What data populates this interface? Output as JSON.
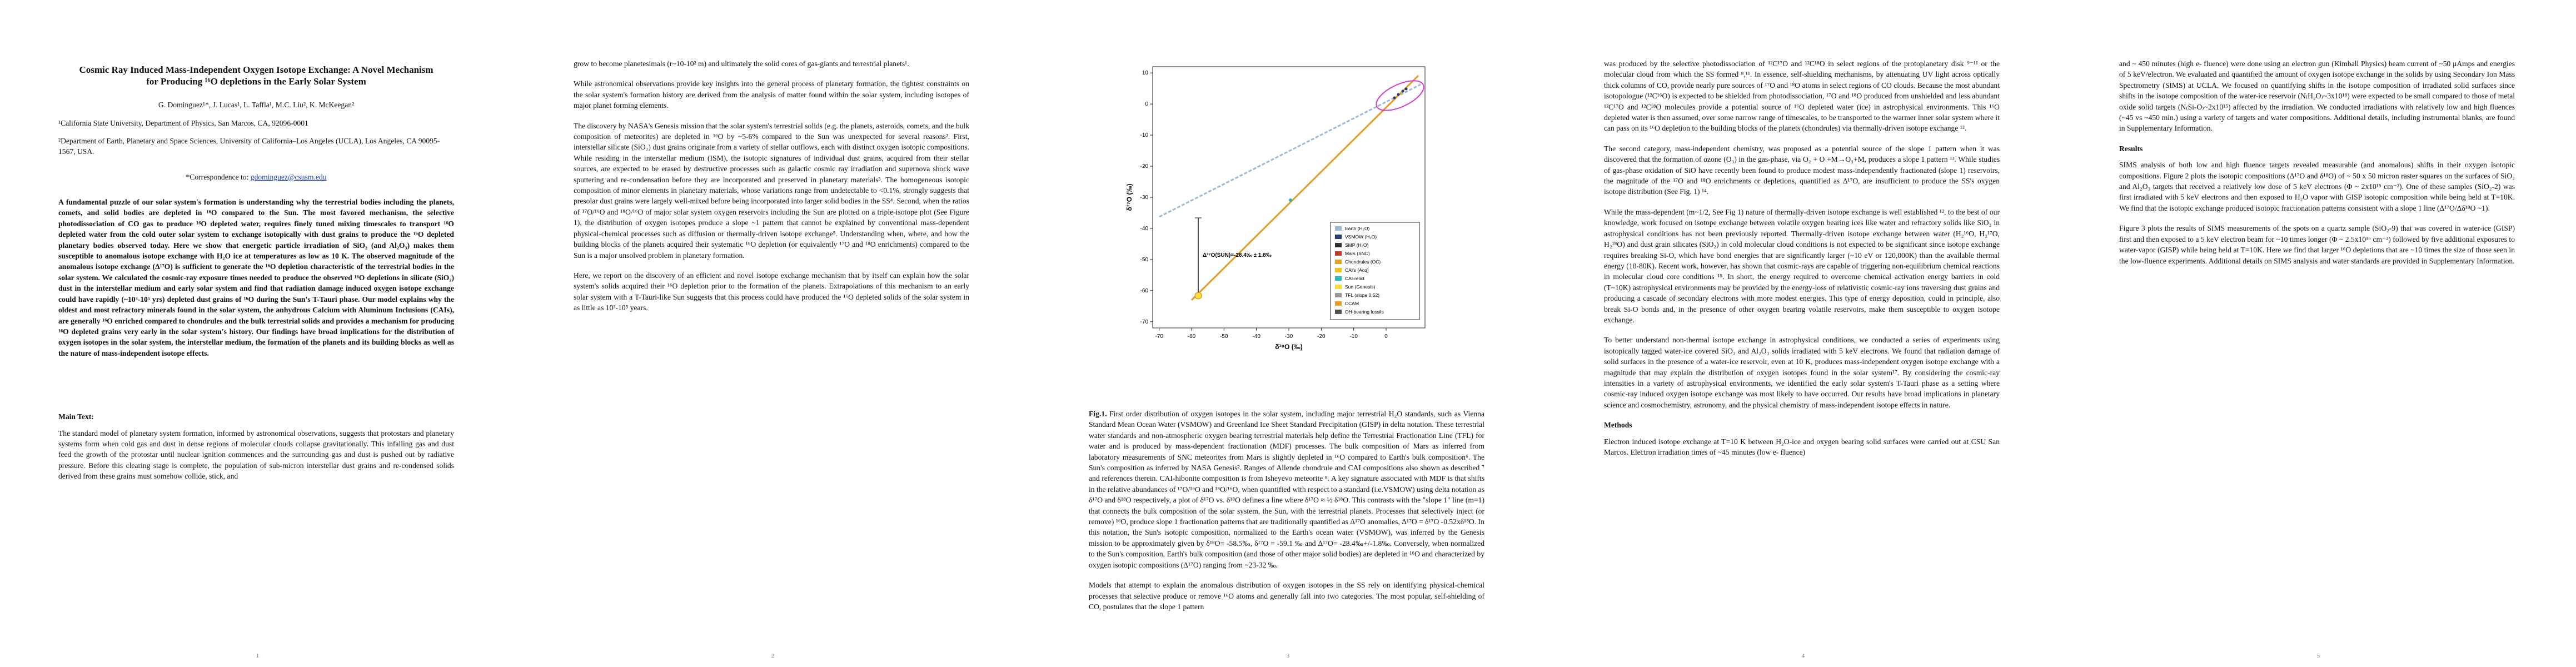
{
  "pages": [
    {
      "number": "1",
      "blocks": [
        {
          "kind": "title",
          "text": "Cosmic Ray Induced Mass-Independent Oxygen Isotope Exchange: A Novel Mechanism for Producing ¹⁶O depletions in the Early Solar System"
        },
        {
          "kind": "authors",
          "text": "G. Dominguez¹*, J. Lucas¹, L. Taffla¹, M.C. Liu², K. McKeegan²"
        },
        {
          "kind": "affil",
          "text": "¹California State University, Department of Physics, San Marcos, CA, 92096-0001"
        },
        {
          "kind": "affil",
          "text": "²Department of Earth, Planetary and Space Sciences, University of California–Los Angeles (UCLA), Los Angeles, CA 90095-1567, USA."
        },
        {
          "kind": "corr",
          "text": "*Correspondence to: ",
          "link": "gdominguez@csusm.edu"
        },
        {
          "kind": "abstract",
          "text": "A fundamental puzzle of our solar system's formation is understanding why the terrestrial bodies including the planets, comets, and solid bodies are depleted in ¹⁶O compared to the Sun. The most favored mechanism, the selective photodissociation of CO gas to produce ¹⁶O depleted water, requires finely tuned mixing timescales to transport ¹⁶O depleted water from the cold outer solar system to exchange isotopically with dust grains to produce the ¹⁶O depleted planetary bodies observed today. Here we show that energetic particle irradiation of SiO₂ (and Al₂O₃) makes them susceptible to anomalous isotope exchange with H₂O ice at temperatures as low as 10 K. The observed magnitude of the anomalous isotope exchange (Δ¹⁷O) is sufficient to generate the ¹⁶O depletion characteristic of the terrestrial bodies in the solar system. We calculated the cosmic-ray exposure times needed to produce the observed ¹⁶O depletions in silicate (SiO₂) dust in the interstellar medium and early solar system and find that radiation damage induced oxygen isotope exchange could have rapidly (~10³-10⁵ yrs) depleted dust grains of ¹⁶O during the Sun's T-Tauri phase. Our model explains why the oldest and most refractory minerals found in the solar system, the anhydrous Calcium with Aluminum Inclusions (CAIs), are generally ¹⁶O enriched compared to chondrules and the bulk terrestrial solids and provides a mechanism for producing ¹⁶O depleted grains very early in the solar system's history. Our findings have broad implications for the distribution of oxygen isotopes in the solar system, the interstellar medium, the formation of the planets and its building blocks as well as the nature of mass-independent isotope effects."
        },
        {
          "kind": "heading",
          "text": "Main Text:"
        },
        {
          "kind": "para",
          "text": "The standard model of planetary system formation, informed by astronomical observations, suggests that protostars and planetary systems form when cold gas and dust in dense regions of molecular clouds collapse gravitationally. This infalling gas and dust feed the growth of the protostar until nuclear ignition commences and the surrounding gas and dust is pushed out by radiative pressure. Before this clearing stage is complete, the population of sub-micron interstellar dust grains and re-condensed solids derived from these grains must somehow collide, stick, and"
        }
      ]
    },
    {
      "number": "2",
      "blocks": [
        {
          "kind": "para",
          "text": "grow to become planetesimals (r~10-10² m) and ultimately the solid cores of gas-giants and terrestrial planets¹."
        },
        {
          "kind": "para",
          "text": "While astronomical observations provide key insights into the general process of planetary formation, the tightest constraints on the solar system's formation history are derived from the analysis of matter found within the solar system, including isotopes of major planet forming elements."
        },
        {
          "kind": "para",
          "text": "The discovery by NASA's Genesis mission that the solar system's terrestrial solids (e.g. the planets, asteroids, comets, and the bulk composition of meteorites) are depleted in ¹⁶O by ~5-6% compared to the Sun was unexpected for several reasons². First, interstellar silicate (SiO₂) dust grains originate from a variety of stellar outflows, each with distinct oxygen isotopic compositions. While residing in the interstellar medium (ISM), the isotopic signatures of individual dust grains, acquired from their stellar sources, are expected to be erased by destructive processes such as galactic cosmic ray irradiation and supernova shock wave sputtering and re-condensation before they are incorporated and preserved in planetary materials³. The homogeneous isotopic composition of minor elements in planetary materials, whose variations range from undetectable to <0.1%, strongly suggests that presolar dust grains were largely well-mixed before being incorporated into larger solid bodies in the SS⁴. Second, when the ratios of ¹⁷O/¹⁶O and ¹⁸O/¹⁶O of major solar system oxygen reservoirs including the Sun are plotted on a triple-isotope plot (See Figure 1), the distribution of oxygen isotopes produce a slope ~1 pattern that cannot be explained by conventional mass-dependent physical-chemical processes such as diffusion or thermally-driven isotope exchange⁵. Understanding when, where, and how the building blocks of the planets acquired their systematic ¹⁶O depletion (or equivalently ¹⁷O and ¹⁸O enrichments) compared to the Sun is a major unsolved problem in planetary formation."
        },
        {
          "kind": "para",
          "text": "Here, we report on the discovery of an efficient and novel isotope exchange mechanism that by itself can explain how the solar system's solids acquired their ¹⁶O depletion prior to the formation of the planets. Extrapolations of this mechanism to an early solar system with a T-Tauri-like Sun suggests that this process could have produced the ¹⁶O depleted solids of the solar system in as little as 10³-10⁵ years."
        }
      ]
    },
    {
      "number": "3",
      "figure": {
        "xlabel": "δ¹⁸O (‰)",
        "ylabel": "δ¹⁷O (‰)",
        "xlim": [
          -72,
          12
        ],
        "ylim": [
          -72,
          12
        ],
        "xticks": [
          -70,
          -60,
          -50,
          -40,
          -30,
          -20,
          -10,
          0
        ],
        "yticks": [
          -70,
          -60,
          -50,
          -40,
          -30,
          -20,
          -10,
          0,
          10
        ],
        "annotation": "Δ¹⁷O(SUN)=-28.4‰ ± 1.8‰",
        "legend": [
          {
            "name": "Earth (H₂O)",
            "color": "#9fb9d6"
          },
          {
            "name": "VSMOW (H₂O)",
            "color": "#1f3d73"
          },
          {
            "name": "SMP (H₂O)",
            "color": "#333333"
          },
          {
            "name": "Mars (SNC)",
            "color": "#c0392b"
          },
          {
            "name": "Chondrules (OC)",
            "color": "#e3a21a"
          },
          {
            "name": "CAI's (Acq)",
            "color": "#f1c40f"
          },
          {
            "name": "CAI-relict",
            "color": "#2ab7b7"
          },
          {
            "name": "Sun (Genesis)",
            "color": "#f7dc3b"
          },
          {
            "name": "TFL (slope 0.52)",
            "color": "#999999"
          },
          {
            "name": "CCAM",
            "color": "#e69b26"
          },
          {
            "name": "OH-bearing fossils",
            "color": "#555555"
          }
        ]
      },
      "blocks": [
        {
          "kind": "caption",
          "label": "Fig.1.",
          "text": " First order distribution of oxygen isotopes in the solar system, including major terrestrial H₂O standards, such as Vienna Standard Mean Ocean Water (VSMOW) and Greenland Ice Sheet Standard Precipitation (GISP) in delta notation. These terrestrial water standards and non-atmospheric oxygen bearing terrestrial materials help define the Terrestrial Fractionation Line (TFL) for water and is produced by mass-dependent fractionation (MDF) processes. The bulk composition of Mars as inferred from laboratory measurements of SNC meteorites from Mars is slightly depleted in ¹⁶O compared to Earth's bulk composition⁶. The Sun's composition as inferred by NASA Genesis². Ranges of Allende chondrule and CAI compositions also shown as described ⁷ and references therein. CAI-hibonite composition is from Isheyevo meteorite ⁸. A key signature associated with MDF is that shifts in the relative abundances of ¹⁷O/¹⁶O and ¹⁸O/¹⁶O, when quantified with respect to a standard (i.e.VSMOW) using delta notation as δ¹⁷O and δ¹⁸O respectively, a plot of δ¹⁷O vs. δ¹⁸O defines a line where δ¹⁷O ≈ ½ δ¹⁸O. This contrasts with the \"slope 1\" line (m=1) that connects the bulk composition of the solar system, the Sun, with the terrestrial planets. Processes that selectively inject (or remove) ¹⁶O, produce slope 1 fractionation patterns that are traditionally quantified as Δ¹⁷O anomalies, Δ¹⁷O = δ¹⁷O -0.52xδ¹⁸O. In this notation, the Sun's isotopic composition, normalized to the Earth's ocean water (VSMOW), was inferred by the Genesis mission to be approximately given by δ¹⁸O= -58.5‰, δ¹⁷O = -59.1 ‰ and Δ¹⁷O= -28.4‰+/-1.8‰. Conversely, when normalized to the Sun's composition, Earth's bulk composition (and those of other major solid bodies) are depleted in ¹⁶O and characterized by oxygen isotopic compositions (Δ¹⁷O) ranging from ~23-32 ‰."
        },
        {
          "kind": "para",
          "text": "Models that attempt to explain the anomalous distribution of oxygen isotopes in the SS rely on identifying physical-chemical processes that selective produce or remove ¹⁶O atoms and generally fall into two categories. The most popular, self-shielding of CO, postulates that the slope 1 pattern"
        }
      ]
    },
    {
      "number": "4",
      "blocks": [
        {
          "kind": "para",
          "text": "was produced by the selective photodissociation of ¹²C¹⁷O and ¹²C¹⁸O in select regions of the protoplanetary disk ⁹⁻¹¹ or the molecular cloud from which the SS formed ⁸,¹¹. In essence, self-shielding mechanisms, by attenuating UV light across optically thick columns of CO, provide nearly pure sources of ¹⁷O and ¹⁸O atoms in select regions of CO clouds. Because the most abundant isotopologue (¹²C¹⁶O) is expected to be shielded from photodissociation, ¹⁷O and ¹⁸O produced from unshielded and less abundant ¹²C¹⁷O and ¹²C¹⁸O molecules provide a potential source of ¹⁶O depleted water (ice) in astrophysical environments. This ¹⁶O depleted water is then assumed, over some narrow range of timescales, to be transported to the warmer inner solar system where it can pass on its ¹⁶O depletion to the building blocks of the planets (chondrules) via thermally-driven isotope exchange ¹²."
        },
        {
          "kind": "para",
          "text": "The second category, mass-independent chemistry, was proposed as a potential source of the slope 1 pattern when it was discovered that the formation of ozone (O₃) in the gas-phase, via O₂ + O +M→O₃+M, produces a slope 1 pattern ¹³. While studies of gas-phase oxidation of SiO have recently been found to produce modest mass-independently fractionated (slope 1) reservoirs, the magnitude of the ¹⁷O and ¹⁸O enrichments or depletions, quantified as Δ¹⁷O, are insufficient to produce the SS's oxygen isotope distribution (See Fig. 1) ¹⁴."
        },
        {
          "kind": "para",
          "text": "While the mass-dependent (m~1/2, See Fig 1) nature of thermally-driven isotope exchange is well established ¹², to the best of our knowledge, work focused on isotope exchange between volatile oxygen bearing ices like water and refractory solids like SiO₂ in astrophysical conditions has not been previously reported. Thermally-driven isotope exchange between water (H₂¹⁶O, H₂¹⁷O, H₂¹⁸O) and dust grain silicates (SiO₂) in cold molecular cloud conditions is not expected to be significant since isotope exchange requires breaking Si-O, which have bond energies that are significantly larger (~10 eV or 120,000K) than the available thermal energy (10-80K). Recent work, however, has shown that cosmic-rays are capable of triggering non-equilibrium chemical reactions in molecular cloud core conditions ¹⁵. In short, the energy required to overcome chemical activation energy barriers in cold (T~10K) astrophysical environments may be provided by the energy-loss of relativistic cosmic-ray ions traversing dust grains and producing a cascade of secondary electrons with more modest energies. This type of energy deposition, could in principle, also break Si-O bonds and, in the presence of other oxygen bearing volatile reservoirs, make them susceptible to oxygen isotope exchange."
        },
        {
          "kind": "para",
          "text": "To better understand non-thermal isotope exchange in astrophysical conditions, we conducted a series of experiments using isotopically tagged water-ice covered SiO₂ and Al₂O₃ solids irradiated with 5 keV electrons. We found that radiation damage of solid surfaces in the presence of a water-ice reservoir, even at 10 K, produces mass-independent oxygen isotope exchange with a magnitude that may explain the distribution of oxygen isotopes found in the solar system¹⁷. By considering the cosmic-ray intensities in a variety of astrophysical environments, we identified the early solar system's T-Tauri phase as a setting where cosmic-ray induced oxygen isotope exchange was most likely to have occurred. Our results have broad implications in planetary science and cosmochemistry, astronomy, and the physical chemistry of mass-independent isotope effects in nature."
        },
        {
          "kind": "heading",
          "text": "Methods"
        },
        {
          "kind": "para",
          "text": "Electron induced isotope exchange at T=10 K between H₂O-ice and oxygen bearing solid surfaces were carried out at CSU San Marcos. Electron irradiation times of ~45 minutes (low e- fluence)"
        }
      ]
    },
    {
      "number": "5",
      "blocks": [
        {
          "kind": "para",
          "text": "and ~ 450 minutes (high e- fluence) were done using an electron gun (Kimball Physics) beam current of ~50 μAmps and energies of 5 keV/electron. We evaluated and quantified the amount of oxygen isotope exchange in the solids by using Secondary Ion Mass Spectrometry (SIMS) at UCLA. We focused on quantifying shifts in the isotope composition of irradiated solid surfaces since shifts in the isotope composition of the water-ice reservoir (N₍H₂O₎~3x10¹⁸) were expected to be small compared to those of metal oxide solid targets (N₍Si-O₎~2x10¹⁵) affected by the irradiation. We conducted irradiations with relatively low and high fluences (~45 vs ~450 min.) using a variety of targets and water compositions. Additional details, including instrumental blanks, are found in Supplementary Information."
        },
        {
          "kind": "heading",
          "text": "Results"
        },
        {
          "kind": "para",
          "text": "SIMS analysis of both low and high fluence targets revealed measurable (and anomalous) shifts in their oxygen isotopic compositions. Figure 2 plots the isotopic compositions (Δ¹⁷O and δ¹⁸O) of ~ 50 x 50 micron raster squares on the surfaces of SiO₂ and Al₂O₃ targets that received a relatively low dose of 5 keV electrons (Φ ~ 2x10¹⁵ cm⁻²). One of these samples (SiO₂-2) was first irradiated with 5 keV electrons and then exposed to H₂O vapor with GISP isotopic composition while being held at T=10K. We find that the isotopic exchange produced isotopic fractionation patterns consistent with a slope 1 line (Δ¹⁷O/Δδ¹⁸O ~1)."
        },
        {
          "kind": "para",
          "text": "Figure 3 plots the results of SIMS measurements of the spots on a quartz sample (SiO₂-9) that was covered in water-ice (GISP) first and then exposed to a 5 keV electron beam for ~10 times longer (Φ ~ 2.5x10¹⁶ cm⁻²) followed by five additional exposures to water-vapor (GISP) while being held at T=10K. Here we find that larger ¹⁶O depletions that are ~10 times the size of those seen in the low-fluence experiments. Additional details on SIMS analysis and water standards are provided in Supplementary Information."
        }
      ]
    }
  ]
}
